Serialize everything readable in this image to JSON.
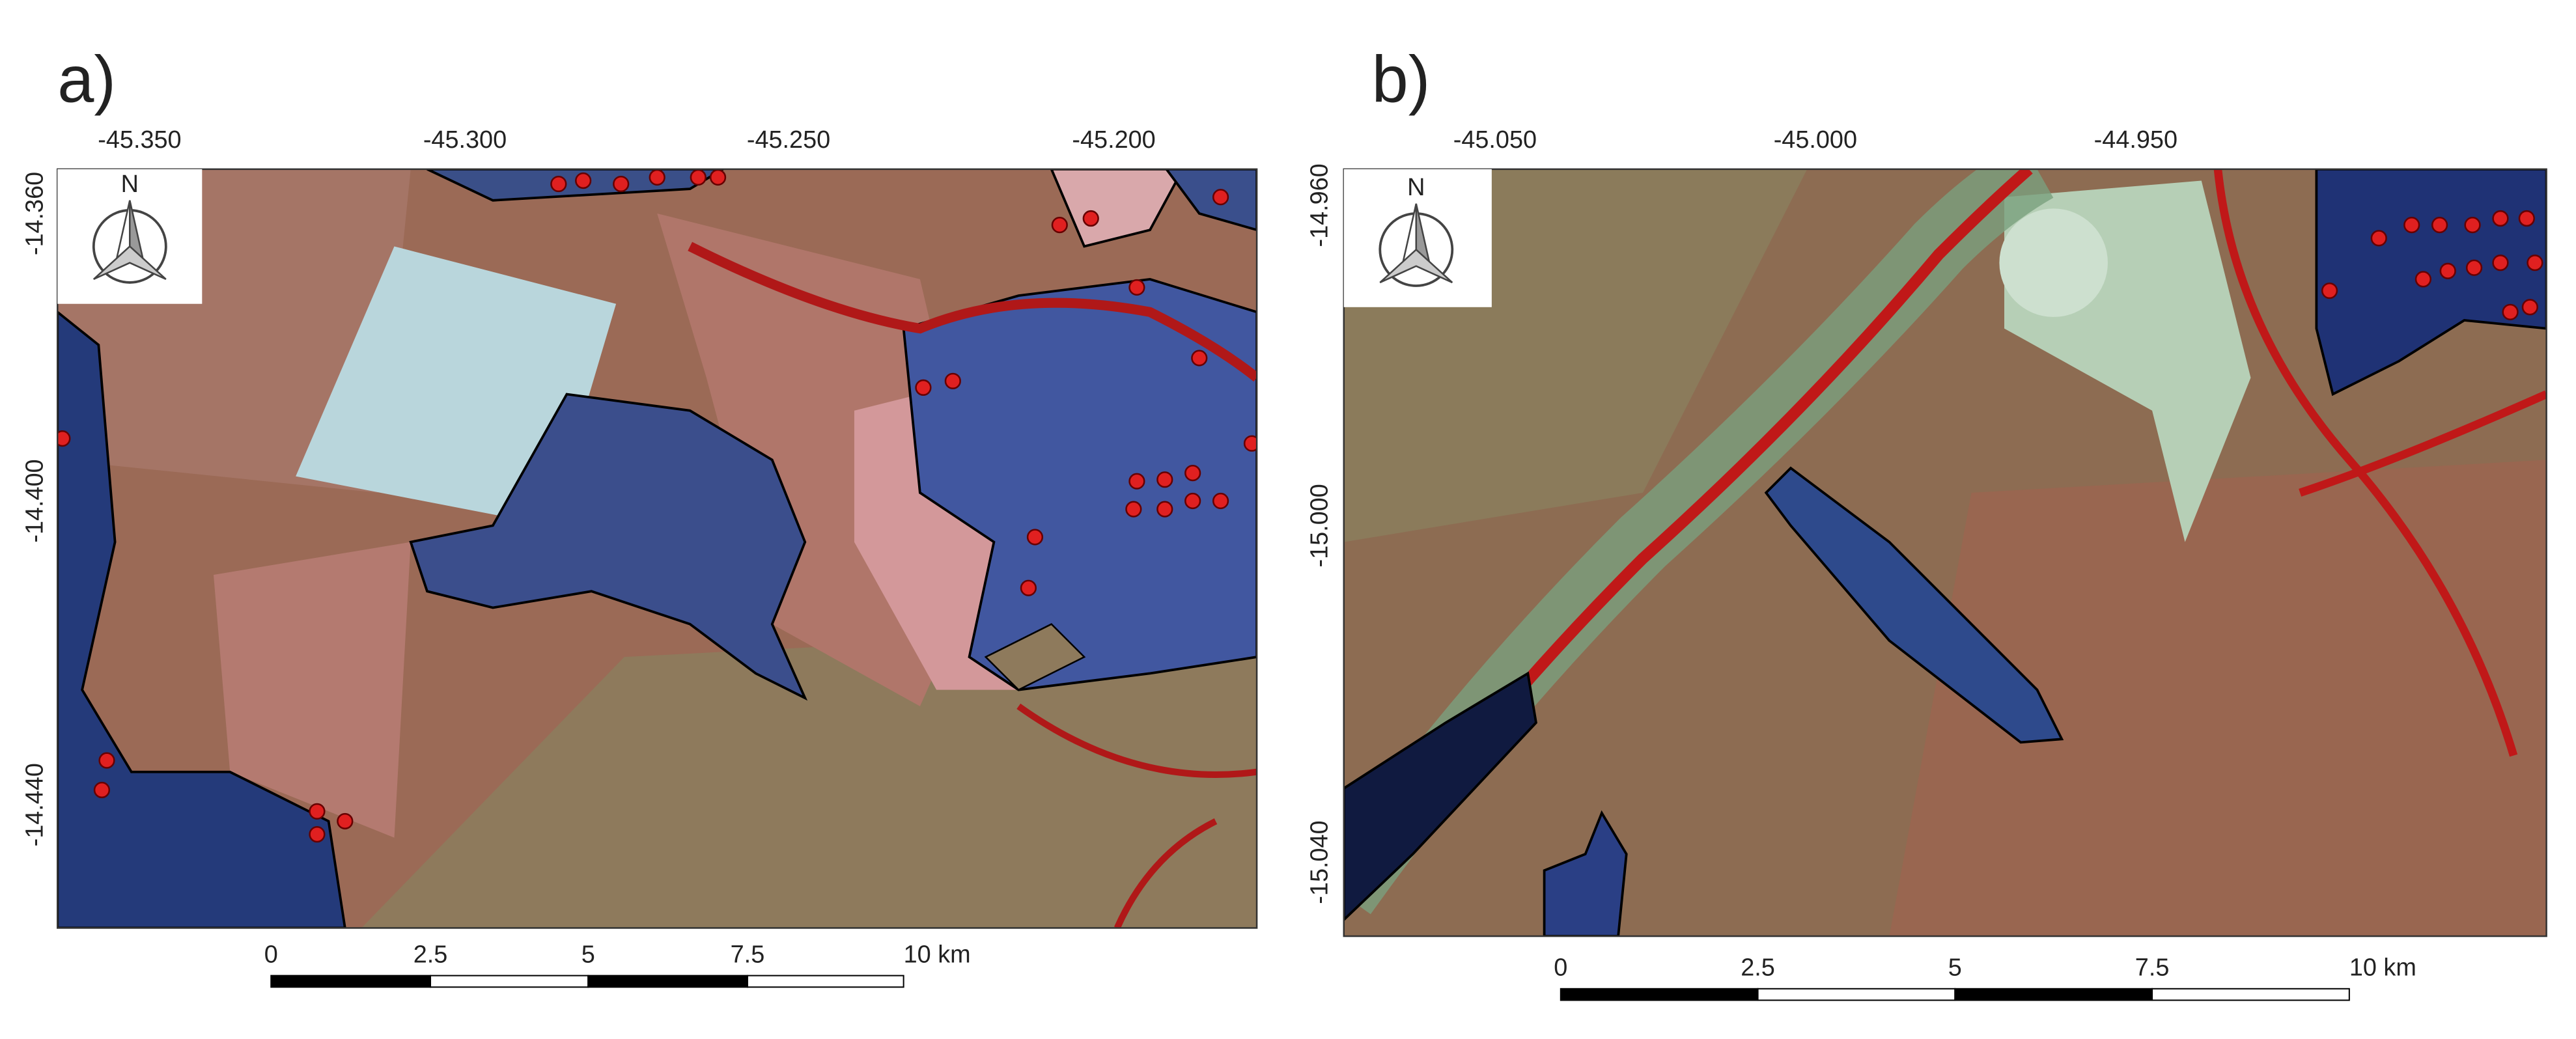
{
  "panels": [
    {
      "label": "a)",
      "lon_ticks": [
        "-45.350",
        "-45.300",
        "-45.250",
        "-45.200"
      ],
      "lat_ticks": [
        "-14.360",
        "-14.400",
        "-14.440"
      ],
      "north": "N",
      "scale_labels": [
        "0",
        "2.5",
        "5",
        "7.5",
        "10 km"
      ]
    },
    {
      "label": "b)",
      "lon_ticks": [
        "-45.050",
        "-45.000",
        "-44.950"
      ],
      "lat_ticks": [
        "-14.960",
        "-15.000",
        "-15.040"
      ],
      "north": "N",
      "scale_labels": [
        "0",
        "2.5",
        "5",
        "7.5",
        "10 km"
      ]
    }
  ]
}
